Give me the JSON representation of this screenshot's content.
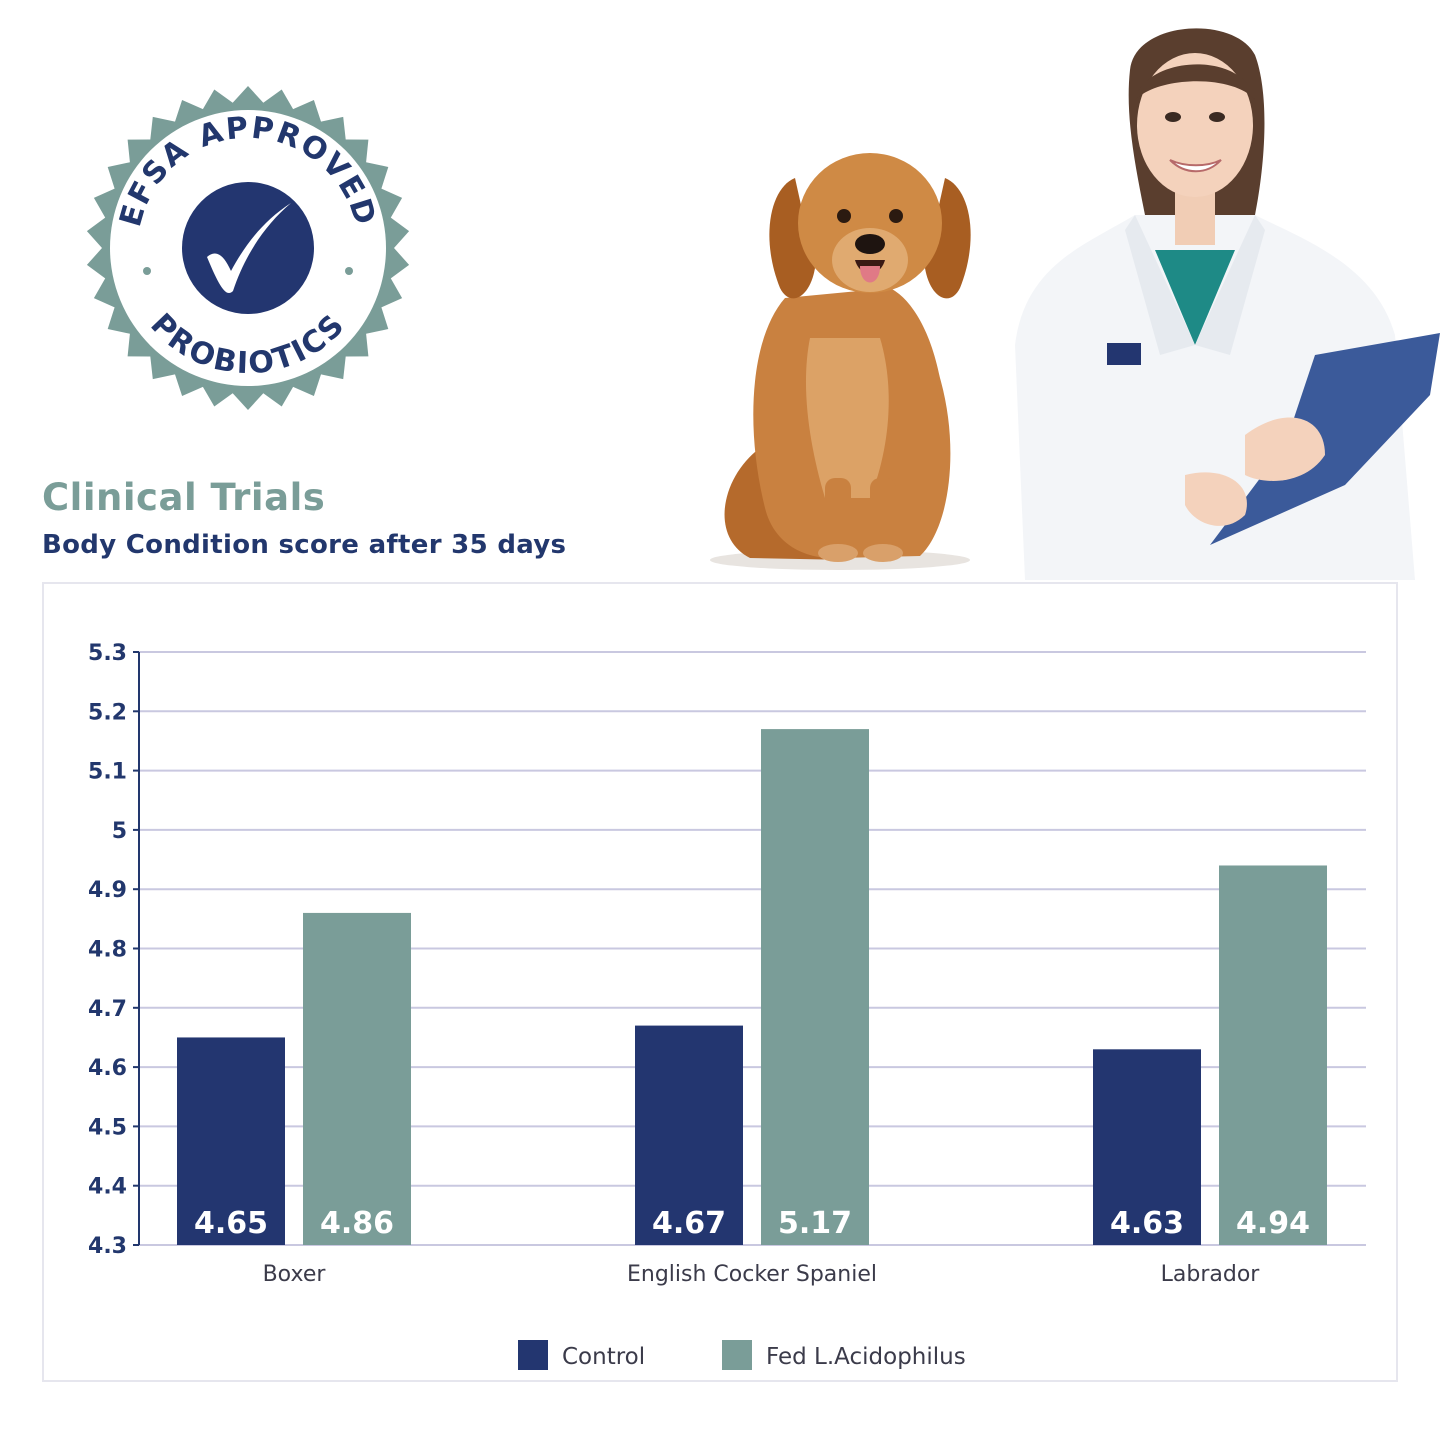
{
  "badge": {
    "text_top": "EFSA APPROVED",
    "text_bottom": "PROBIOTICS",
    "icon": "checkmark-icon"
  },
  "images": {
    "dog": "golden-retriever-photo",
    "vet": "veterinarian-with-clipboard-photo"
  },
  "heading": {
    "title": "Clinical Trials",
    "subtitle": "Body Condition score after 35 days"
  },
  "colors": {
    "control": "#233670",
    "fed": "#7a9d98",
    "grid": "#c9c8e0",
    "axis_text": "#22376d"
  },
  "chart_data": {
    "type": "bar",
    "categories": [
      "Boxer",
      "English Cocker Spaniel",
      "Labrador"
    ],
    "series": [
      {
        "name": "Control",
        "values": [
          4.65,
          4.67,
          4.63
        ],
        "labels": [
          "4.65",
          "4.67",
          "4.63"
        ]
      },
      {
        "name": "Fed L.Acidophilus",
        "values": [
          4.86,
          5.17,
          4.94
        ],
        "labels": [
          "4.86",
          "5.17",
          "4.94"
        ]
      }
    ],
    "ylim": [
      4.3,
      5.3
    ],
    "yticks": [
      4.3,
      4.4,
      4.5,
      4.6,
      4.7,
      4.8,
      4.9,
      5.0,
      5.1,
      5.2,
      5.3
    ],
    "ytick_labels": [
      "4.3",
      "4.4",
      "4.5",
      "4.6",
      "4.7",
      "4.8",
      "4.9",
      "5",
      "5.1",
      "5.2",
      "5.3"
    ],
    "grid": true,
    "legend": "bottom"
  }
}
